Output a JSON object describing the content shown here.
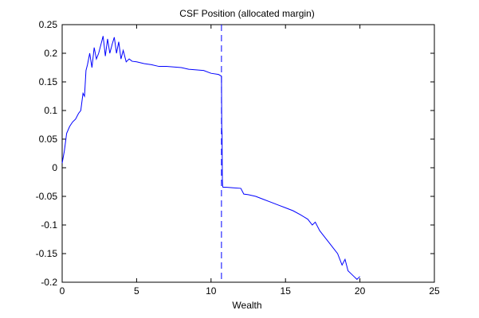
{
  "chart_data": {
    "type": "line",
    "title": "CSF Position (allocated margin)",
    "xlabel": "Wealth",
    "ylabel": "",
    "xlim": [
      0,
      25
    ],
    "ylim": [
      -0.2,
      0.25
    ],
    "xticks": [
      0,
      5,
      10,
      15,
      20,
      25
    ],
    "yticks": [
      -0.2,
      -0.15,
      -0.1,
      -0.05,
      0,
      0.05,
      0.1,
      0.15,
      0.2,
      0.25
    ],
    "grid": false,
    "series_color": "#0000ff",
    "series": [
      {
        "style": "solid",
        "x": [
          0,
          0.15,
          0.3,
          0.5,
          0.7,
          0.9,
          1.1,
          1.25,
          1.35,
          1.4,
          1.5,
          1.6,
          1.7,
          1.85,
          2.0,
          2.15,
          2.3,
          2.45,
          2.6,
          2.75,
          2.9,
          3.05,
          3.2,
          3.35,
          3.5,
          3.65,
          3.8,
          3.95,
          4.1,
          4.3,
          4.5,
          4.7,
          5.0,
          5.5,
          6.0,
          6.5,
          7.0,
          7.5,
          8.0,
          8.5,
          9.0,
          9.5,
          10.0,
          10.5,
          10.7,
          10.72,
          10.74,
          10.76,
          10.78,
          10.8,
          11.0,
          11.5,
          12.0,
          12.2,
          12.5,
          13.0,
          13.5,
          14.0,
          14.5,
          15.0,
          15.5,
          16.0,
          16.5,
          16.8,
          17.0,
          17.3,
          17.6,
          17.9,
          18.2,
          18.5,
          18.8,
          19.0,
          19.2,
          19.4,
          19.6,
          19.8,
          20.0
        ],
        "y": [
          0.008,
          0.03,
          0.06,
          0.072,
          0.08,
          0.085,
          0.095,
          0.1,
          0.12,
          0.13,
          0.125,
          0.17,
          0.18,
          0.2,
          0.175,
          0.21,
          0.19,
          0.2,
          0.215,
          0.23,
          0.195,
          0.225,
          0.2,
          0.215,
          0.228,
          0.2,
          0.22,
          0.19,
          0.205,
          0.185,
          0.19,
          0.186,
          0.185,
          0.182,
          0.18,
          0.177,
          0.177,
          0.176,
          0.175,
          0.172,
          0.171,
          0.17,
          0.165,
          0.163,
          0.16,
          0.07,
          0.06,
          -0.02,
          -0.032,
          -0.034,
          -0.034,
          -0.035,
          -0.036,
          -0.046,
          -0.047,
          -0.05,
          -0.055,
          -0.06,
          -0.065,
          -0.07,
          -0.075,
          -0.082,
          -0.09,
          -0.1,
          -0.095,
          -0.11,
          -0.12,
          -0.13,
          -0.14,
          -0.15,
          -0.17,
          -0.16,
          -0.18,
          -0.185,
          -0.19,
          -0.195,
          -0.19
        ]
      },
      {
        "style": "dashed",
        "x": [
          10.7,
          10.7
        ],
        "y": [
          0.25,
          -0.2
        ]
      }
    ]
  }
}
